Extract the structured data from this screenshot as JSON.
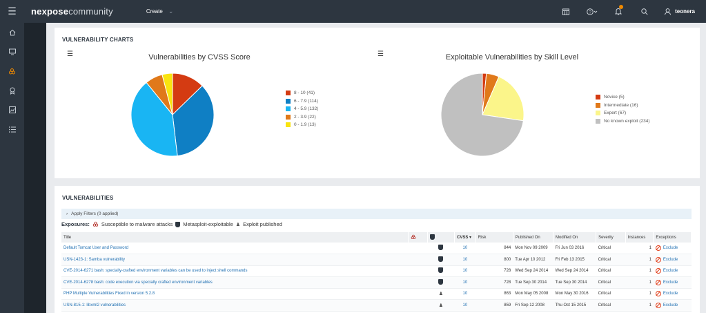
{
  "topbar": {
    "brand_main": "nexpose",
    "brand_sub": "community",
    "create_label": "Create",
    "user_name": "teonera"
  },
  "charts_panel": {
    "title": "VULNERABILITY CHARTS",
    "cvss_chart_title": "Vulnerabilities by CVSS Score",
    "skill_chart_title": "Exploitable Vulnerabilities by Skill Level"
  },
  "chart_data": [
    {
      "type": "pie",
      "title": "Vulnerabilities by CVSS Score",
      "categories": [
        "8 - 10 (41)",
        "6 - 7.9 (114)",
        "4 - 5.9 (132)",
        "2 - 3.9 (22)",
        "0 - 1.9 (13)"
      ],
      "values": [
        41,
        114,
        132,
        22,
        13
      ],
      "colors": [
        "#d43b12",
        "#0f7fc4",
        "#19b5f3",
        "#e0791a",
        "#f9e40f"
      ],
      "legend_position": "right"
    },
    {
      "type": "pie",
      "title": "Exploitable Vulnerabilities by Skill Level",
      "categories": [
        "Novice (5)",
        "Intermediate (16)",
        "Expert (67)",
        "No known exploit (234)"
      ],
      "values": [
        5,
        16,
        67,
        234
      ],
      "colors": [
        "#d43b12",
        "#e0791a",
        "#fbf58a",
        "#c0c0c0"
      ],
      "legend_position": "right"
    }
  ],
  "vulns_panel": {
    "title": "VULNERABILITIES",
    "filter_label": "Apply Filters (0 applied)",
    "exposures_label": "Exposures:",
    "exposure_malware": "Susceptible to malware attacks",
    "exposure_metasploit": "Metasploit-exploitable",
    "exposure_exploit": "Exploit published",
    "columns": {
      "title": "Title",
      "cvss": "CVSS",
      "risk": "Risk",
      "published": "Published On",
      "modified": "Modified On",
      "severity": "Severity",
      "instances": "Instances",
      "exceptions": "Exceptions"
    },
    "rows": [
      {
        "title": "Default Tomcat User and Password",
        "icon": "metasploit",
        "cvss": "10",
        "risk": "844",
        "published": "Mon Nov 09 2009",
        "modified": "Fri Jun 03 2016",
        "severity": "Critical",
        "instances": "1",
        "exception": "Exclude"
      },
      {
        "title": "USN-1423-1: Samba vulnerability",
        "icon": "metasploit",
        "cvss": "10",
        "risk": "800",
        "published": "Tue Apr 10 2012",
        "modified": "Fri Feb 13 2015",
        "severity": "Critical",
        "instances": "1",
        "exception": "Exclude"
      },
      {
        "title": "CVE-2014-6271 bash: specially-crafted environment variables can be used to inject shell commands",
        "icon": "metasploit",
        "cvss": "10",
        "risk": "728",
        "published": "Wed Sep 24 2014",
        "modified": "Wed Sep 24 2014",
        "severity": "Critical",
        "instances": "1",
        "exception": "Exclude"
      },
      {
        "title": "CVE-2014-6278 bash: code execution via specially crafted environment variables",
        "icon": "metasploit",
        "cvss": "10",
        "risk": "728",
        "published": "Tue Sep 30 2014",
        "modified": "Tue Sep 30 2014",
        "severity": "Critical",
        "instances": "1",
        "exception": "Exclude"
      },
      {
        "title": "PHP Multiple Vulnerabilities Fixed in version 5.2.8",
        "icon": "exploit",
        "cvss": "10",
        "risk": "863",
        "published": "Mon May 05 2008",
        "modified": "Mon May 30 2016",
        "severity": "Critical",
        "instances": "1",
        "exception": "Exclude"
      },
      {
        "title": "USN-815-1: libxml2 vulnerabilities",
        "icon": "exploit",
        "cvss": "10",
        "risk": "859",
        "published": "Fri Sep 12 2008",
        "modified": "Thu Oct 15 2015",
        "severity": "Critical",
        "instances": "1",
        "exception": "Exclude"
      }
    ]
  }
}
